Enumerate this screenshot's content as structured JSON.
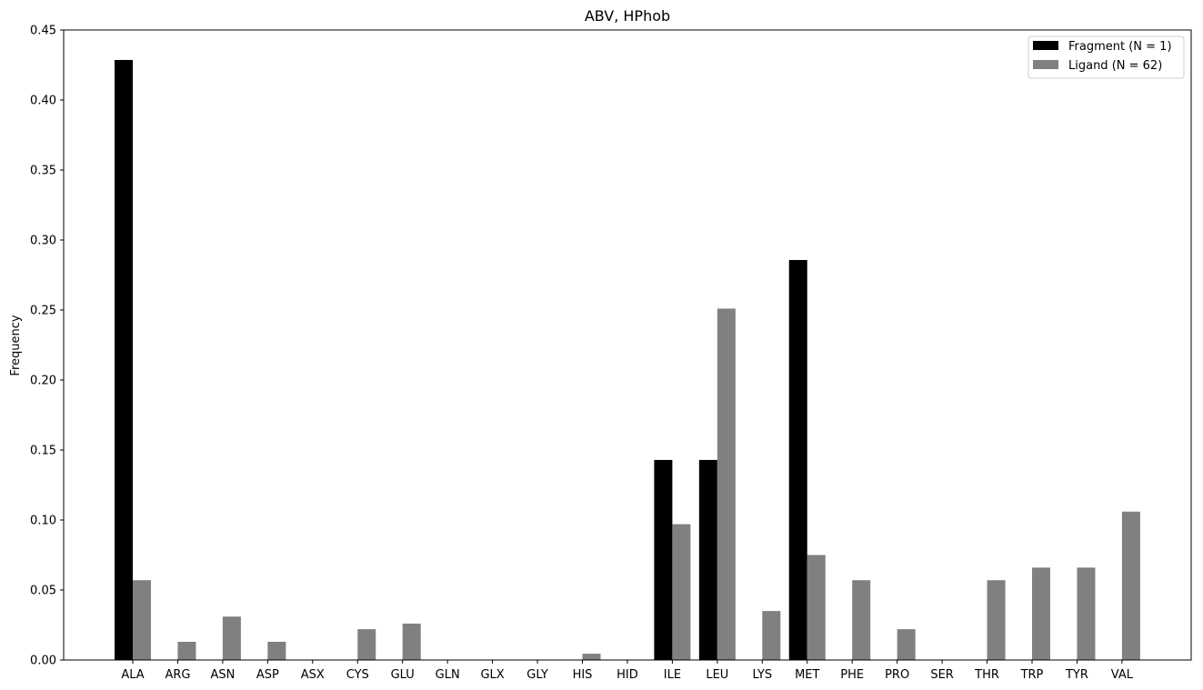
{
  "chart_data": {
    "type": "bar",
    "title": "ABV, HPhob",
    "xlabel": "",
    "ylabel": "Frequency",
    "ylim": [
      0,
      0.45
    ],
    "yticks": [
      "0.00",
      "0.05",
      "0.10",
      "0.15",
      "0.20",
      "0.25",
      "0.30",
      "0.35",
      "0.40",
      "0.45"
    ],
    "grid": false,
    "legend_position": "top-right",
    "categories": [
      "ALA",
      "ARG",
      "ASN",
      "ASP",
      "ASX",
      "CYS",
      "GLU",
      "GLN",
      "GLX",
      "GLY",
      "HIS",
      "HID",
      "ILE",
      "LEU",
      "LYS",
      "MET",
      "PHE",
      "PRO",
      "SER",
      "THR",
      "TRP",
      "TYR",
      "VAL"
    ],
    "series": [
      {
        "name": "Fragment (N = 1)",
        "color": "#000000",
        "values": [
          0.4286,
          0,
          0,
          0,
          0,
          0,
          0,
          0,
          0,
          0,
          0,
          0,
          0.1429,
          0.1429,
          0,
          0.2857,
          0,
          0,
          0,
          0,
          0,
          0,
          0
        ]
      },
      {
        "name": "Ligand (N = 62)",
        "color": "#808080",
        "values": [
          0.057,
          0.013,
          0.031,
          0.013,
          0,
          0.022,
          0.026,
          0,
          0,
          0,
          0.0045,
          0,
          0.097,
          0.251,
          0.035,
          0.075,
          0.057,
          0.022,
          0,
          0.057,
          0.066,
          0.066,
          0.106
        ]
      }
    ]
  }
}
